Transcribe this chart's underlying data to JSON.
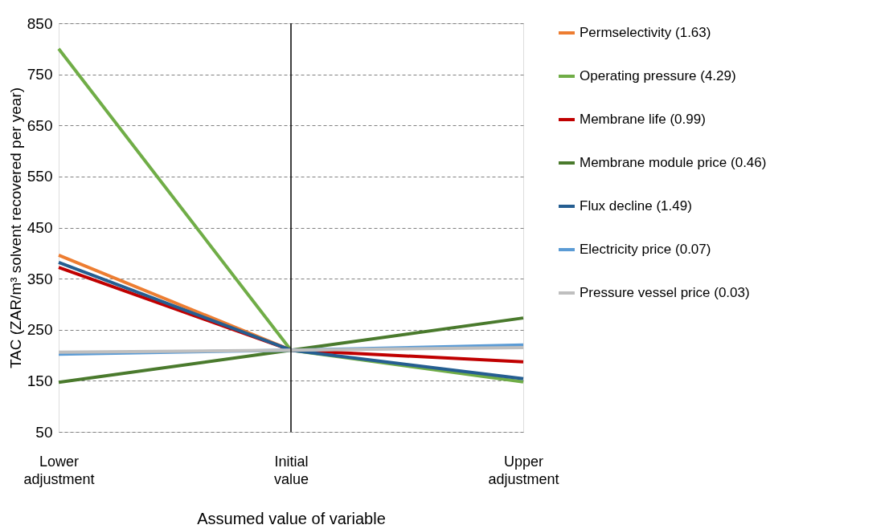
{
  "chart_data": {
    "type": "line",
    "xlabel": "Assumed value of variable",
    "ylabel": "TAC (ZAR/m³ solvent recovered per year)",
    "categories": [
      "Lower adjustment",
      "Initial value",
      "Upper adjustment"
    ],
    "series": [
      {
        "name": "Permselectivity (1.63)",
        "color": "#ed7d31",
        "values": [
          396,
          210,
          null
        ]
      },
      {
        "name": "Operating pressure (4.29)",
        "color": "#70ad47",
        "values": [
          800,
          210,
          148
        ]
      },
      {
        "name": "Membrane life (0.99)",
        "color": "#c00000",
        "values": [
          372,
          210,
          187
        ]
      },
      {
        "name": "Membrane module price (0.46)",
        "color": "#4a7a2d",
        "values": [
          147,
          210,
          273
        ]
      },
      {
        "name": "Flux decline (1.49)",
        "color": "#255e91",
        "values": [
          382,
          210,
          154
        ]
      },
      {
        "name": "Electricity price (0.07)",
        "color": "#5b9bd5",
        "values": [
          202,
          210,
          220
        ]
      },
      {
        "name": "Pressure vessel price (0.03)",
        "color": "#bfbfbf",
        "values": [
          206,
          210,
          215
        ]
      }
    ],
    "ylim": [
      50,
      850
    ],
    "yticks": [
      50,
      150,
      250,
      350,
      450,
      550,
      650,
      750,
      850
    ],
    "grid": "y",
    "legend": "right",
    "marker": "none",
    "line_style": "solid",
    "ref_lines": [
      {
        "axis": "x",
        "value": "Initial value",
        "color": "#000000"
      }
    ]
  }
}
